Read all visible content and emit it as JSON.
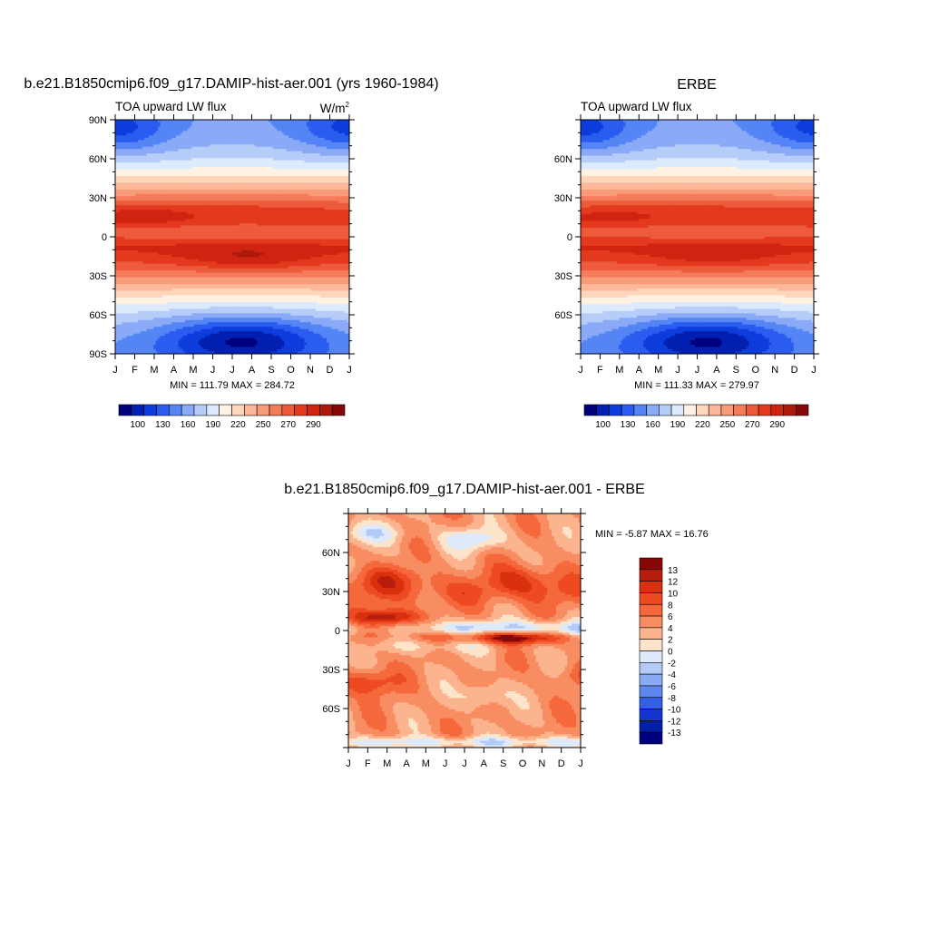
{
  "chart_data": [
    {
      "type": "heatmap",
      "title": "b.e21.B1850cmip6.f09_g17.DAMIP-hist-aer.001 (yrs 1960-1984)",
      "subtitle": "TOA upward LW flux",
      "units": "W/m2",
      "x_ticks": [
        "J",
        "F",
        "M",
        "A",
        "M",
        "J",
        "J",
        "A",
        "S",
        "O",
        "N",
        "D",
        "J"
      ],
      "y_ticks": [
        "90N",
        "60N",
        "30N",
        "0",
        "30S",
        "60S",
        "90S"
      ],
      "y_tick_values": [
        90,
        60,
        30,
        0,
        -30,
        -60,
        -90
      ],
      "ylim": [
        -90,
        90
      ],
      "stats_text": "MIN = 111.79 MAX = 284.72",
      "min": 111.79,
      "max": 284.72,
      "colorbar_labels": [
        "100",
        "130",
        "160",
        "190",
        "220",
        "250",
        "270",
        "290"
      ],
      "colorbar_levels": [
        100,
        110,
        120,
        130,
        140,
        150,
        160,
        170,
        180,
        190,
        200,
        210,
        220,
        230,
        240,
        250,
        260,
        270,
        280,
        290
      ],
      "colorbar_orientation": "horizontal"
    },
    {
      "type": "heatmap",
      "title": "ERBE",
      "subtitle": "TOA upward LW flux",
      "x_ticks": [
        "J",
        "F",
        "M",
        "A",
        "M",
        "J",
        "J",
        "A",
        "S",
        "O",
        "N",
        "D",
        "J"
      ],
      "y_ticks": [
        "60N",
        "30N",
        "0",
        "30S",
        "60S"
      ],
      "y_tick_values": [
        60,
        30,
        0,
        -30,
        -60
      ],
      "ylim": [
        -90,
        90
      ],
      "stats_text": "MIN = 111.33 MAX = 279.97",
      "min": 111.33,
      "max": 279.97,
      "colorbar_labels": [
        "100",
        "130",
        "160",
        "190",
        "220",
        "250",
        "270",
        "290"
      ],
      "colorbar_levels": [
        100,
        110,
        120,
        130,
        140,
        150,
        160,
        170,
        180,
        190,
        200,
        210,
        220,
        230,
        240,
        250,
        260,
        270,
        280,
        290
      ],
      "colorbar_orientation": "horizontal"
    },
    {
      "type": "heatmap",
      "title": "b.e21.B1850cmip6.f09_g17.DAMIP-hist-aer.001 - ERBE",
      "x_ticks": [
        "J",
        "F",
        "M",
        "A",
        "M",
        "J",
        "J",
        "A",
        "S",
        "O",
        "N",
        "D",
        "J"
      ],
      "y_ticks": [
        "60N",
        "30N",
        "0",
        "30S",
        "60S"
      ],
      "y_tick_values": [
        60,
        30,
        0,
        -30,
        -60
      ],
      "ylim": [
        -90,
        90
      ],
      "stats_text": "MIN =  -5.87 MAX =  16.76",
      "min": -5.87,
      "max": 16.76,
      "colorbar_labels": [
        "13",
        "12",
        "10",
        "8",
        "6",
        "4",
        "2",
        "0",
        "-2",
        "-4",
        "-6",
        "-8",
        "-10",
        "-12",
        "-13"
      ],
      "colorbar_orientation": "vertical"
    }
  ],
  "colors": {
    "abs_scale": [
      "#00007f",
      "#0321b0",
      "#0d3ddc",
      "#2a5cf0",
      "#5585f5",
      "#8aaaf7",
      "#b7cdf9",
      "#ddeafd",
      "#fff2e2",
      "#fdd6bc",
      "#fcb898",
      "#f89b78",
      "#f47c5a",
      "#ee5b3c",
      "#e33a1f",
      "#cf2410",
      "#ad1a0c",
      "#860707"
    ],
    "diff_scale": [
      "#860707",
      "#b71c0c",
      "#d9300f",
      "#ee4a22",
      "#f4683c",
      "#f88d62",
      "#fbb48e",
      "#fde5cc",
      "#deeafc",
      "#b4cbf7",
      "#8aaaf4",
      "#5e87ef",
      "#3260e8",
      "#1236cf",
      "#031fa8",
      "#00007f"
    ]
  }
}
